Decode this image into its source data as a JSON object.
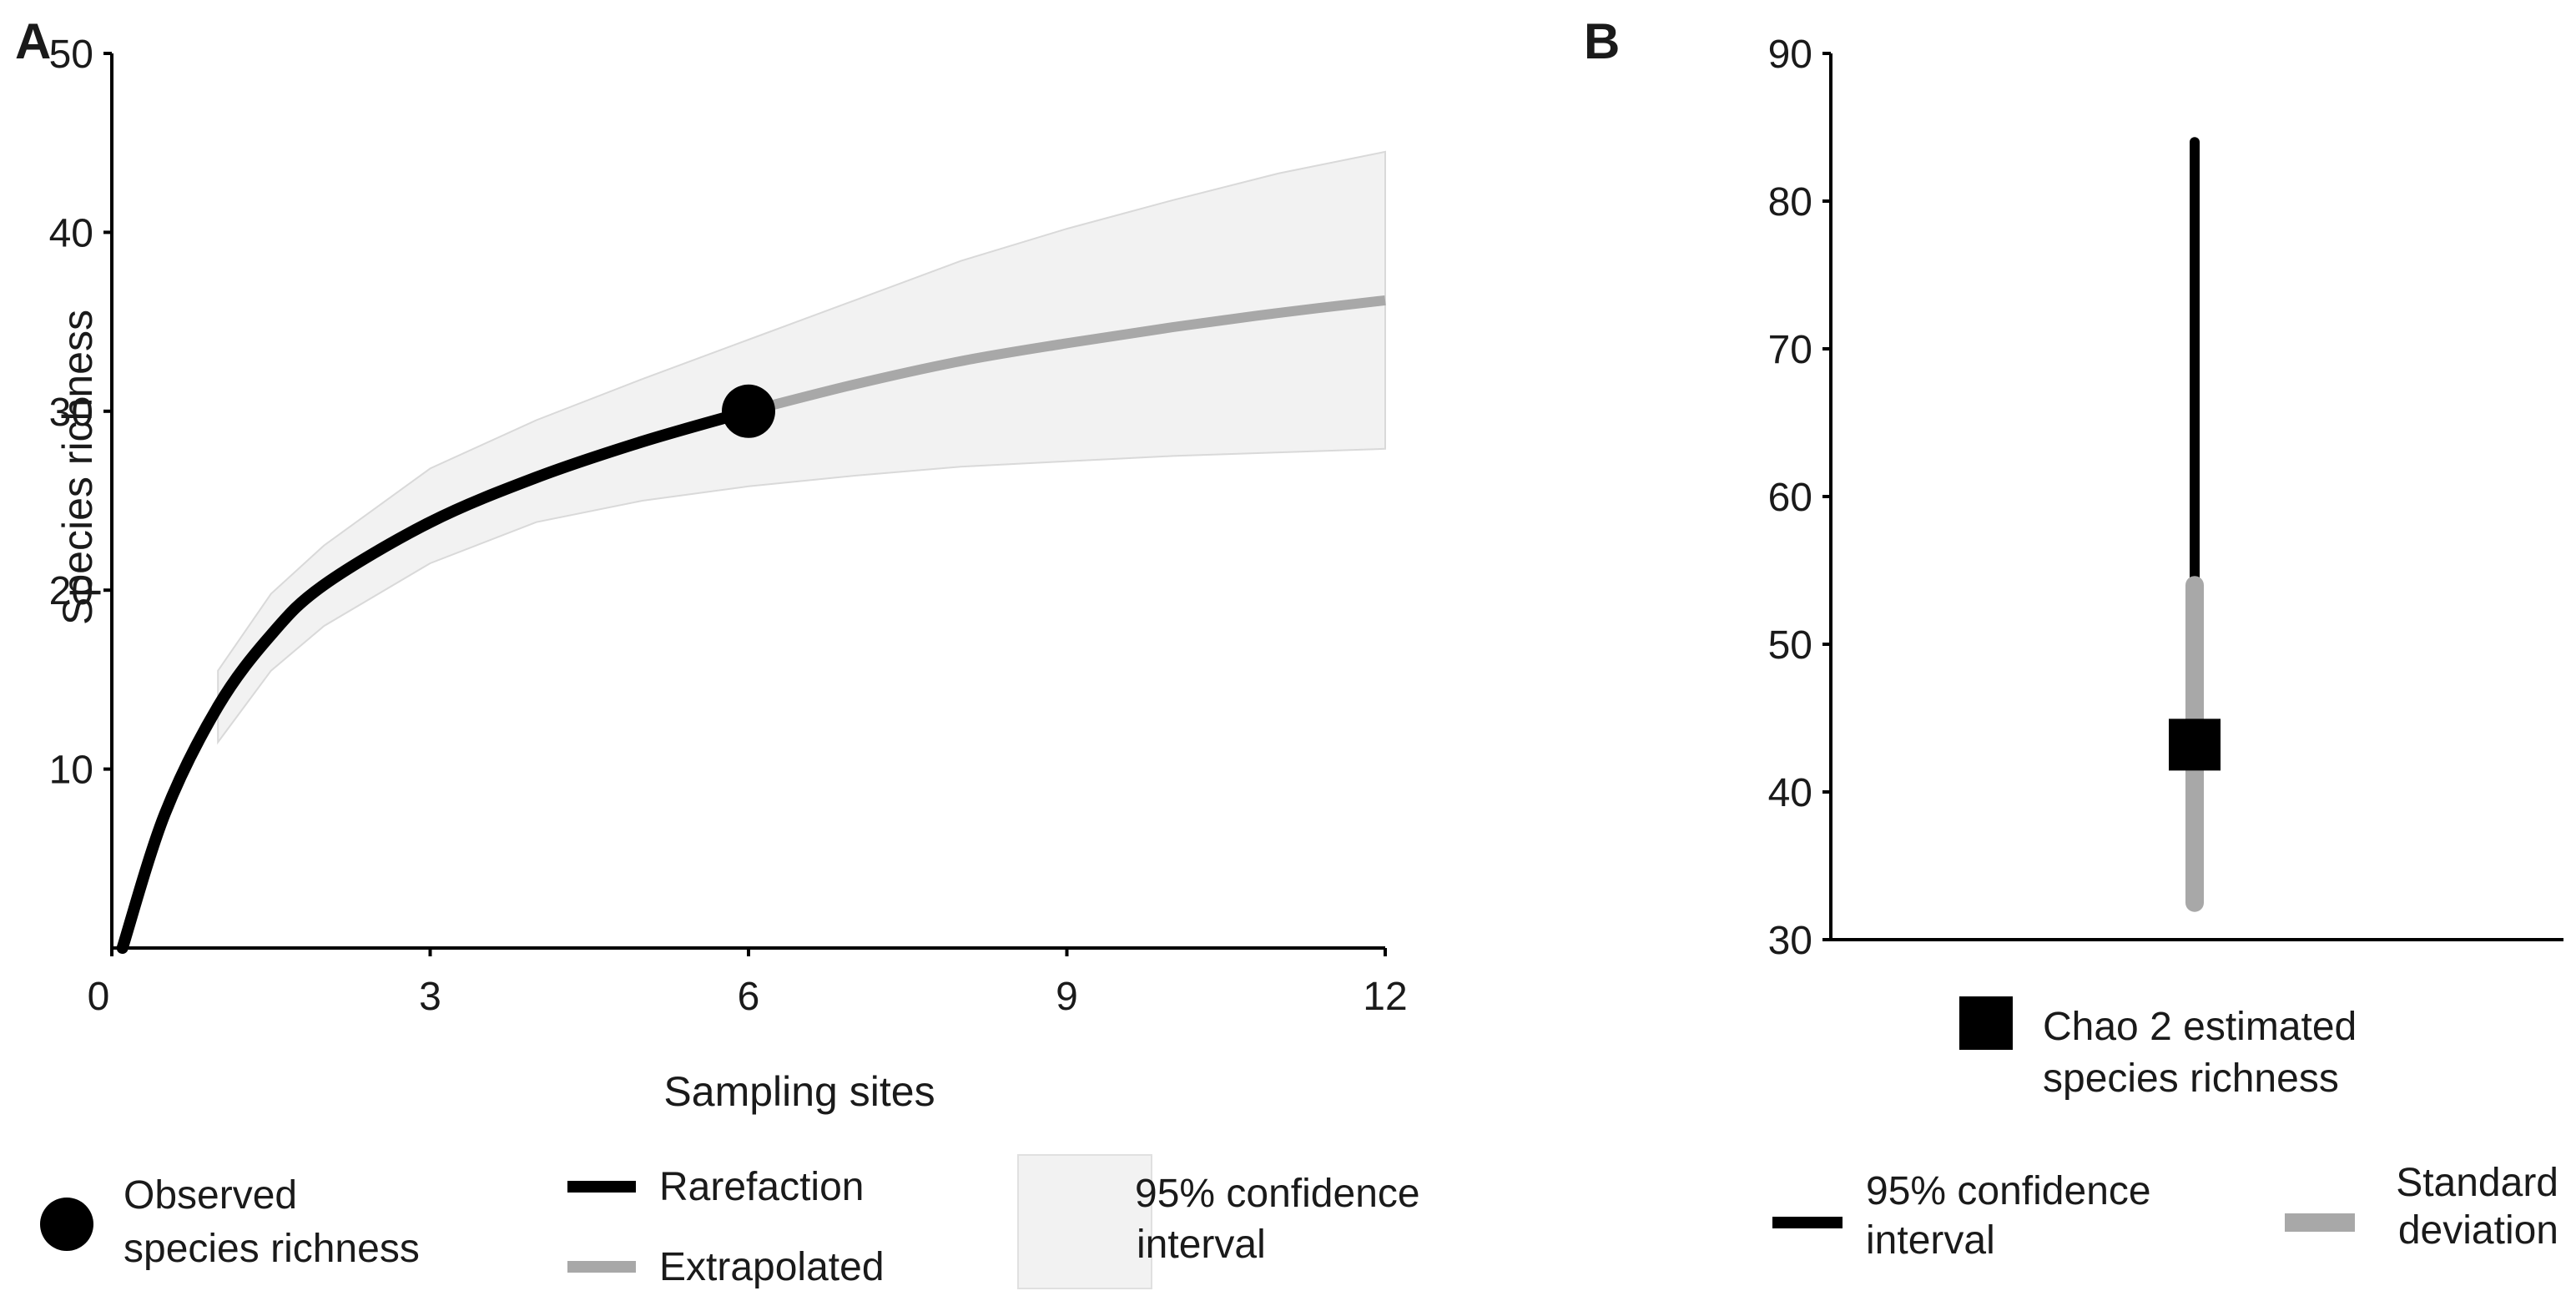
{
  "chart_data": [
    {
      "panel": "A",
      "type": "line",
      "xlabel": "Sampling sites",
      "ylabel": "Species richness",
      "xlim": [
        0,
        12
      ],
      "ylim": [
        0,
        50
      ],
      "x_ticks": [
        "0",
        "3",
        "6",
        "9",
        "12"
      ],
      "y_ticks": [
        "10",
        "20",
        "30",
        "40",
        "50"
      ],
      "grid": false,
      "series": [
        {
          "name": "Rarefaction",
          "color": "#000000",
          "x": [
            0.1,
            0.5,
            1,
            1.5,
            2,
            3,
            4,
            5,
            6
          ],
          "y": [
            0,
            7.5,
            13.5,
            17.5,
            20.3,
            23.8,
            26.3,
            28.3,
            30
          ]
        },
        {
          "name": "Extrapolated",
          "color": "#a8a8a8",
          "x": [
            6,
            7,
            8,
            9,
            10,
            11,
            12
          ],
          "y": [
            30,
            31.5,
            32.8,
            33.8,
            34.7,
            35.5,
            36.2
          ]
        }
      ],
      "confidence_band": {
        "name": "95% confidence interval",
        "color": "#f2f2f2",
        "x": [
          1,
          1.5,
          2,
          3,
          4,
          5,
          6,
          7,
          8,
          9,
          10,
          11,
          12
        ],
        "lower": [
          11.5,
          15.5,
          18,
          21.5,
          23.8,
          25,
          25.8,
          26.4,
          26.9,
          27.2,
          27.5,
          27.7,
          27.9
        ],
        "upper": [
          15.5,
          19.8,
          22.5,
          26.8,
          29.5,
          31.8,
          34,
          36.2,
          38.4,
          40.2,
          41.8,
          43.3,
          44.5
        ]
      },
      "observed_point": {
        "name": "Observed species richness",
        "x": 6,
        "y": 30
      }
    },
    {
      "panel": "B",
      "type": "scatter",
      "ylim": [
        30,
        90
      ],
      "y_ticks": [
        "30",
        "40",
        "50",
        "60",
        "70",
        "80",
        "90"
      ],
      "grid": false,
      "estimate": {
        "name": "Chao 2 estimated species richness",
        "value": 43.2
      },
      "confidence_interval": {
        "name": "95% confidence interval",
        "color": "#000000",
        "lower": 54,
        "upper": 84
      },
      "standard_deviation": {
        "name": "Standard deviation",
        "color": "#a8a8a8",
        "lower": 32.5,
        "upper": 54
      }
    }
  ],
  "legend_a": {
    "observed_line1": "Observed",
    "observed_line2": "species richness",
    "rarefaction": "Rarefaction",
    "extrapolated": "Extrapolated",
    "ci_line1": "95% confidence",
    "ci_line2": "interval"
  },
  "legend_b": {
    "chao_line1": "Chao 2 estimated",
    "chao_line2": "species richness",
    "ci_line1": "95% confidence",
    "ci_line2": "interval",
    "sd_line1": "Standard",
    "sd_line2": "deviation"
  }
}
